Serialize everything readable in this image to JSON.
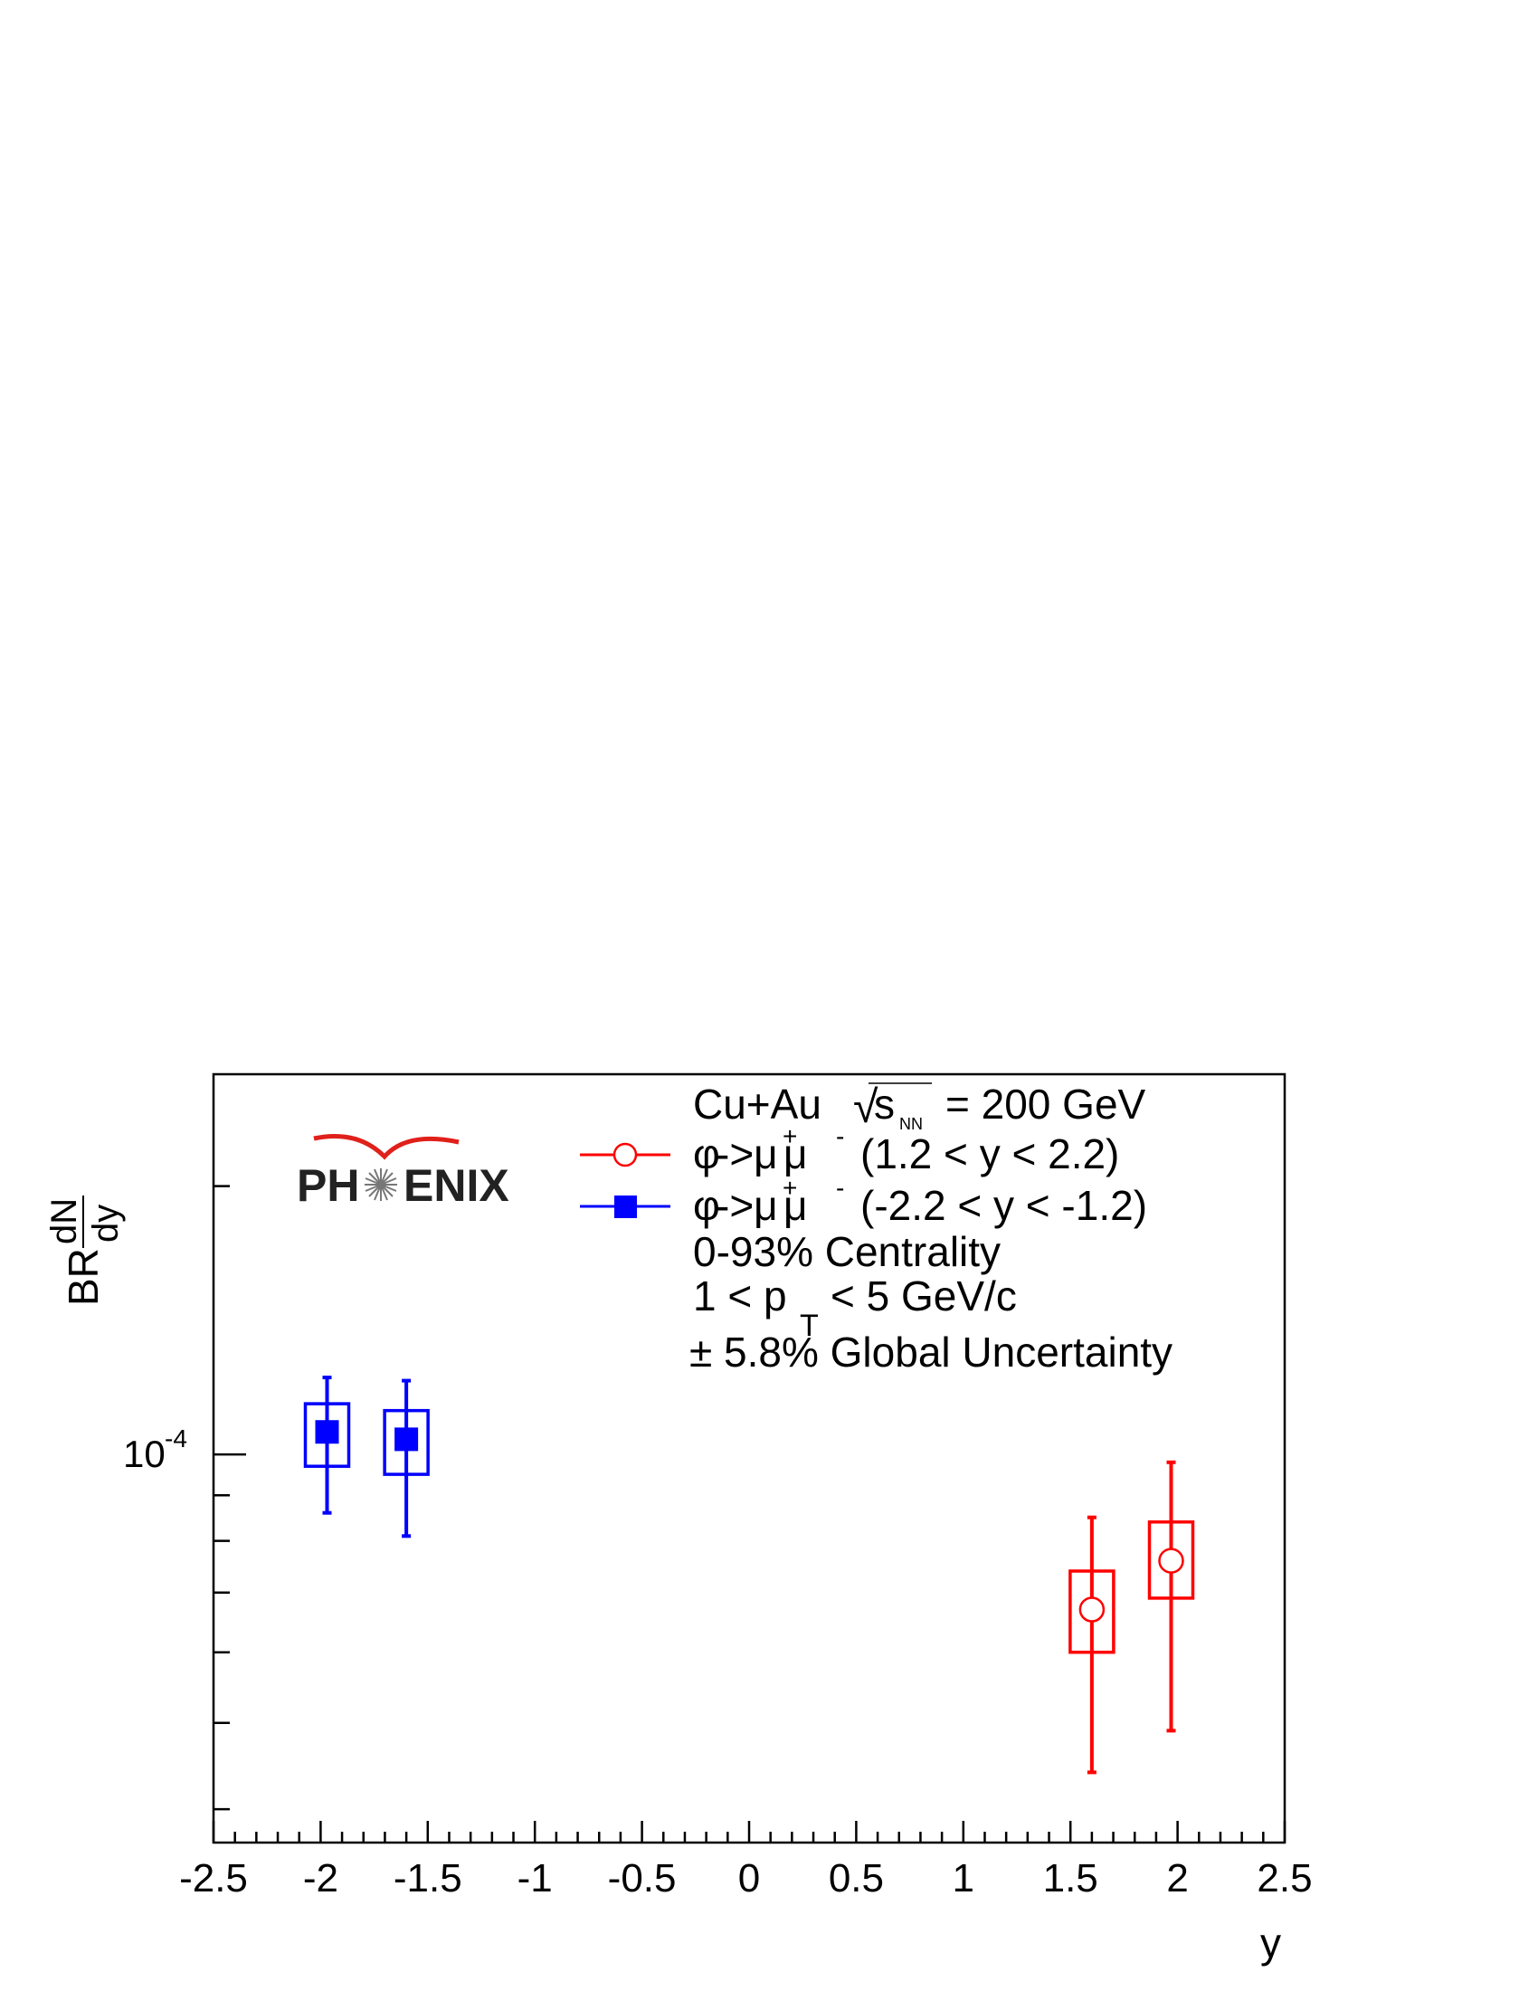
{
  "logo_text": "PHENIX",
  "legend": {
    "line1": {
      "collision": "Cu+Au",
      "sqrt": "√",
      "s": "s",
      "sub": "NN",
      "energy": "= 200 GeV"
    },
    "red_entry": {
      "phi": "φ",
      "arrow": "->μ",
      "sup1": "+",
      "mu": "μ",
      "sup2": "-",
      "range": "(1.2 < y < 2.2)"
    },
    "blue_entry": {
      "phi": "φ",
      "arrow": "->μ",
      "sup1": "+",
      "mu": "μ",
      "sup2": "-",
      "range": "(-2.2 < y < -1.2)"
    },
    "centrality": "0-93% Centrality",
    "pt_pre": "1 < p",
    "pt_sub": "T",
    "pt_post": "< 5 GeV/c",
    "global_unc": "± 5.8% Global Uncertainty"
  },
  "colors": {
    "red": "#ff0000",
    "blue": "#0000ff",
    "axis": "#000000",
    "logo_arc": "#e0201a"
  },
  "chart_data": {
    "type": "scatter",
    "xlabel": "y",
    "ylabel": {
      "base": "BR",
      "num": "dN",
      "den": "dy"
    },
    "xlim": [
      -2.5,
      2.5
    ],
    "ylim": [
      3.67e-05,
      0.000267
    ],
    "yscale": "log",
    "xticks": [
      -2.5,
      -2,
      -1.5,
      -1,
      -0.5,
      0,
      0.5,
      1,
      1.5,
      2,
      2.5
    ],
    "xtick_labels": [
      "-2.5",
      "-2",
      "-1.5",
      "-1",
      "-0.5",
      "0",
      "0.5",
      "1",
      "1.5",
      "2",
      "2.5"
    ],
    "ytick_label": {
      "base": "10",
      "exp": "-4",
      "value": 0.0001
    },
    "series": [
      {
        "color": "#0000ff",
        "marker": "filled-square",
        "points": [
          {
            "x": -1.97,
            "y": 0.000106,
            "stat_lo": 8.6e-05,
            "stat_hi": 0.000122,
            "sys_lo": 9.7e-05,
            "sys_hi": 0.000114
          },
          {
            "x": -1.6,
            "y": 0.000104,
            "stat_lo": 8.1e-05,
            "stat_hi": 0.000121,
            "sys_lo": 9.5e-05,
            "sys_hi": 0.000112
          }
        ]
      },
      {
        "color": "#ff0000",
        "marker": "open-circle",
        "points": [
          {
            "x": 1.6,
            "y": 6.7e-05,
            "stat_lo": 4.4e-05,
            "stat_hi": 8.5e-05,
            "sys_lo": 6e-05,
            "sys_hi": 7.4e-05
          },
          {
            "x": 1.97,
            "y": 7.6e-05,
            "stat_lo": 4.9e-05,
            "stat_hi": 9.8e-05,
            "sys_lo": 6.9e-05,
            "sys_hi": 8.4e-05
          }
        ]
      }
    ]
  }
}
